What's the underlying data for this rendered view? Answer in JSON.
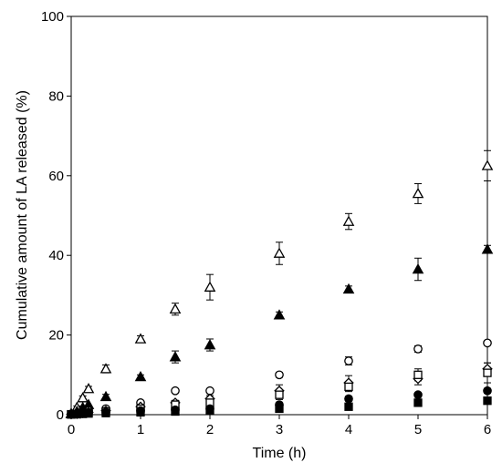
{
  "chart_data": {
    "type": "scatter",
    "xlabel": "Time (h)",
    "ylabel": "Cumulative amount of LA released (%)",
    "xlim": [
      0,
      6
    ],
    "ylim": [
      0,
      100
    ],
    "x_ticks": [
      "0",
      "1",
      "2",
      "3",
      "4",
      "5",
      "6"
    ],
    "y_ticks": [
      "0",
      "20",
      "40",
      "60",
      "80",
      "100"
    ],
    "grid": false,
    "legend": "none",
    "series": [
      {
        "marker": "triangle-open",
        "x": [
          0,
          0.083,
          0.167,
          0.25,
          0.5,
          1,
          1.5,
          2,
          3,
          4,
          5,
          6
        ],
        "y": [
          0.3,
          1.8,
          4.2,
          6.5,
          11.5,
          19.0,
          26.5,
          32.0,
          40.5,
          48.5,
          55.5,
          62.5
        ],
        "err": [
          0.2,
          0.4,
          0.5,
          0.6,
          1.0,
          0.8,
          1.5,
          3.2,
          2.8,
          2.0,
          2.5,
          3.8
        ]
      },
      {
        "marker": "triangle-filled",
        "x": [
          0,
          0.083,
          0.167,
          0.25,
          0.5,
          1,
          1.5,
          2,
          3,
          4,
          5,
          6
        ],
        "y": [
          0.2,
          0.8,
          1.8,
          2.5,
          4.5,
          9.5,
          14.5,
          17.5,
          25.0,
          31.5,
          36.5,
          41.5
        ],
        "err": [
          0.1,
          0.2,
          0.3,
          0.3,
          0.6,
          0.5,
          1.5,
          1.5,
          0.8,
          0.8,
          2.8,
          1.0
        ]
      },
      {
        "marker": "circle-open",
        "x": [
          0,
          0.083,
          0.167,
          0.25,
          0.5,
          1,
          1.5,
          2,
          3,
          4,
          5,
          6
        ],
        "y": [
          0.1,
          0.3,
          0.6,
          1.0,
          1.5,
          3.0,
          6.0,
          6.0,
          10.0,
          13.5,
          16.5,
          18.0
        ],
        "err": [
          0.1,
          0.1,
          0.2,
          0.2,
          0.3,
          0.4,
          0.5,
          0.5,
          0.6,
          1.0,
          0.8,
          0.5
        ]
      },
      {
        "marker": "diamond-open",
        "x": [
          0,
          0.083,
          0.167,
          0.25,
          0.5,
          1,
          1.5,
          2,
          3,
          4,
          5,
          6
        ],
        "y": [
          0.1,
          0.2,
          0.4,
          0.6,
          1.0,
          2.0,
          3.0,
          4.0,
          6.0,
          8.0,
          9.0,
          11.5
        ],
        "err": [
          0.1,
          0.1,
          0.1,
          0.2,
          0.3,
          0.4,
          0.6,
          0.8,
          1.5,
          1.8,
          1.5,
          1.5
        ]
      },
      {
        "marker": "square-open",
        "x": [
          0,
          0.083,
          0.167,
          0.25,
          0.5,
          1,
          1.5,
          2,
          3,
          4,
          5,
          6
        ],
        "y": [
          0.1,
          0.2,
          0.3,
          0.5,
          0.8,
          1.5,
          2.5,
          3.0,
          5.0,
          7.0,
          10.0,
          10.5
        ],
        "err": [
          0.1,
          0.1,
          0.1,
          0.2,
          0.3,
          0.3,
          0.5,
          0.8,
          1.2,
          1.2,
          1.5,
          2.5
        ]
      },
      {
        "marker": "circle-filled",
        "x": [
          0,
          0.083,
          0.167,
          0.25,
          0.5,
          1,
          1.5,
          2,
          3,
          4,
          5,
          6
        ],
        "y": [
          0.1,
          0.2,
          0.3,
          0.4,
          0.6,
          1.0,
          1.2,
          1.5,
          2.5,
          4.0,
          5.0,
          6.0
        ],
        "err": [
          0.1,
          0.1,
          0.1,
          0.1,
          0.2,
          0.2,
          0.3,
          0.4,
          0.5,
          0.6,
          0.6,
          0.6
        ]
      },
      {
        "marker": "square-filled",
        "x": [
          0,
          0.083,
          0.167,
          0.25,
          0.5,
          1,
          1.5,
          2,
          3,
          4,
          5,
          6
        ],
        "y": [
          0.05,
          0.1,
          0.2,
          0.3,
          0.4,
          0.6,
          0.8,
          1.0,
          1.5,
          2.0,
          3.0,
          3.5
        ],
        "err": [
          0.05,
          0.1,
          0.1,
          0.1,
          0.1,
          0.2,
          0.2,
          0.3,
          0.3,
          0.4,
          0.5,
          0.6
        ]
      }
    ]
  }
}
